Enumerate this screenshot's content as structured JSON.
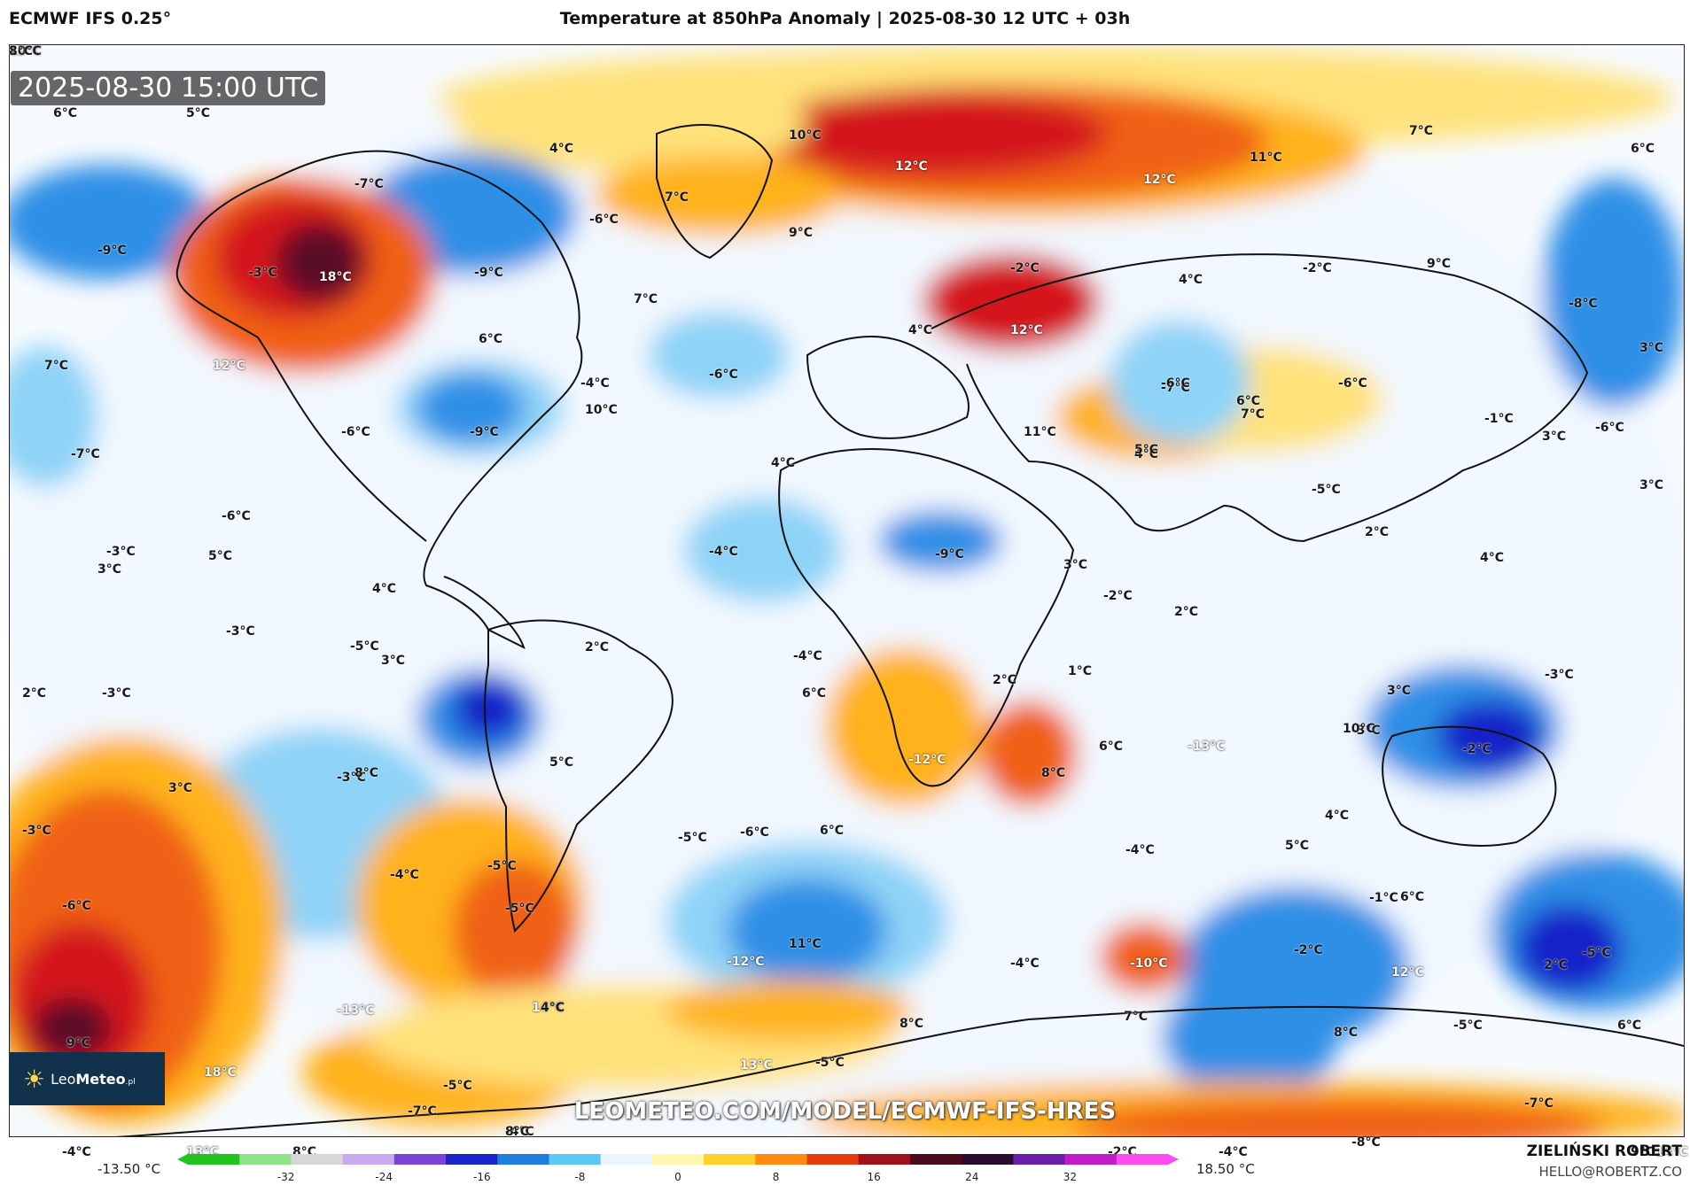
{
  "header": {
    "model": "ECMWF IFS 0.25°",
    "title": "Temperature at 850hPa Anomaly | 2025-08-30 12 UTC + 03h"
  },
  "valid_time": "2025-08-30 15:00 UTC",
  "watermark": "LEOMETEO.COM/MODEL/ECMWF-IFS-HRES",
  "logo": {
    "brand_light": "Leo",
    "brand_bold": "Meteo",
    "suffix": ".pl",
    "icon": "sun-icon"
  },
  "author": {
    "name": "ZIELIŃSKI ROBERT",
    "email": "HELLO@ROBERTZ.CO"
  },
  "legend": {
    "min_label": "-13.50 °C",
    "max_label": "18.50 °C",
    "ticks": [
      "-32",
      "-24",
      "-16",
      "-8",
      "0",
      "8",
      "16",
      "24",
      "32"
    ],
    "colors": [
      "#22c41e",
      "#8fe58a",
      "#d7d7d7",
      "#c9a9f0",
      "#7b42d9",
      "#1a22c9",
      "#1f7de0",
      "#5cc8f5",
      "#eaf6ff",
      "#fff6b0",
      "#ffcf2a",
      "#ff8a12",
      "#e83a0f",
      "#a3101a",
      "#4a0c1c",
      "#2a0a2e",
      "#6b1fa8",
      "#c21cc9",
      "#ff4af0"
    ]
  },
  "palette": {
    "cold_strong": "#1822c8",
    "cold": "#2f8fe6",
    "cool": "#8ed3f7",
    "neutral": "#f2f8ff",
    "warm_light": "#ffe27a",
    "warm": "#ffb21e",
    "hot": "#f06018",
    "very_hot": "#d4161a",
    "extreme": "#5a0d25"
  },
  "labels": [
    "6°C",
    "5°C",
    "4°C",
    "10°C",
    "12°C",
    "11°C",
    "7°C",
    "6°C",
    "-7°C",
    "-6°C",
    "7°C",
    "12°C",
    "9°C",
    "-9°C",
    "-3°C",
    "18°C",
    "-9°C",
    "-2°C",
    "-2°C",
    "9°C",
    "4°C",
    "-8°C",
    "7°C",
    "12°C",
    "6°C",
    "7°C",
    "4°C",
    "12°C",
    "3°C",
    "-6°C",
    "-7°C",
    "-6°C",
    "-4°C",
    "10°C",
    "-6°C",
    "6°C",
    "-7°C",
    "-9°C",
    "-6°C",
    "4°C",
    "4°C",
    "11°C",
    "7°C",
    "5°C",
    "-1°C",
    "3°C",
    "-6°C",
    "3°C",
    "-5°C",
    "-6°C",
    "-3°C",
    "3°C",
    "5°C",
    "-4°C",
    "-9°C",
    "2°C",
    "3°C",
    "4°C",
    "4°C",
    "-2°C",
    "2°C",
    "-3°C",
    "-5°C",
    "3°C",
    "2°C",
    "-4°C",
    "6°C",
    "2°C",
    "1°C",
    "3°C",
    "-3°C",
    "2°C",
    "-3°C",
    "6°C",
    "-13°C",
    "-3°C",
    "-2°C",
    "5°C",
    "-3°C",
    "-12°C",
    "8°C",
    "-5°C",
    "8°C",
    "10°C",
    "4°C",
    "3°C",
    "-3°C",
    "-6°C",
    "6°C",
    "5°C",
    "-4°C",
    "-6°C",
    "6°C",
    "-5°C",
    "-5°C",
    "-1°C",
    "-5°C",
    "-4°C",
    "11°C",
    "12°C",
    "-2°C",
    "-12°C",
    "-4°C",
    "-10°C",
    "2°C",
    "6°C",
    "9°C",
    "-13°C",
    "14°C",
    "18°C",
    "7°C",
    "8°C",
    "8°C",
    "-5°C",
    "-4°C",
    "4°C",
    "-5°C",
    "-7°C",
    "8°C",
    "13°C",
    "-5°C",
    "-7°C",
    "9°C",
    "-4°C",
    "13°C",
    "8°C",
    "-2°C",
    "-4°C",
    "-8°C",
    "14°C",
    "13°C",
    "10°C",
    "8°C"
  ]
}
